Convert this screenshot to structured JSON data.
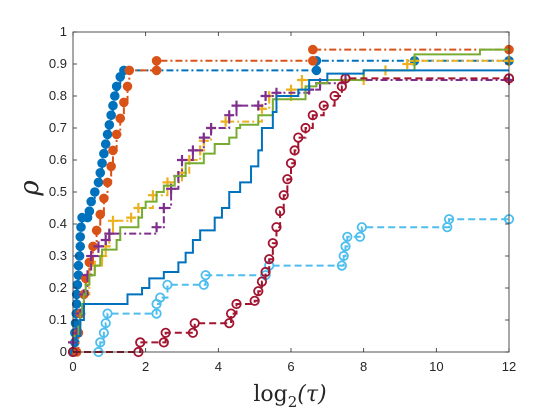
{
  "chart_data": {
    "type": "line",
    "subtype": "performance-profile-stairs",
    "title": "",
    "xlabel": "log",
    "xlabel_sub": "2",
    "xlabel_arg": "(τ)",
    "ylabel": "ρ",
    "xlim": [
      0,
      12
    ],
    "ylim": [
      0,
      1
    ],
    "x_ticks": [
      "0",
      "2",
      "4",
      "6",
      "8",
      "10",
      "12"
    ],
    "y_ticks": [
      "0",
      "0.1",
      "0.2",
      "0.3",
      "0.4",
      "0.5",
      "0.6",
      "0.7",
      "0.8",
      "0.9",
      "1"
    ],
    "grid": false,
    "legend": "none",
    "series": [
      {
        "color": "#0072BD",
        "line": "dashdot",
        "marker": "dot",
        "points": [
          [
            0,
            0
          ],
          [
            0.05,
            0.03
          ],
          [
            0.05,
            0.06
          ],
          [
            0.07,
            0.09
          ],
          [
            0.09,
            0.12
          ],
          [
            0.1,
            0.15
          ],
          [
            0.1,
            0.18
          ],
          [
            0.12,
            0.21
          ],
          [
            0.15,
            0.24
          ],
          [
            0.15,
            0.27
          ],
          [
            0.18,
            0.3
          ],
          [
            0.2,
            0.33
          ],
          [
            0.2,
            0.36
          ],
          [
            0.22,
            0.39
          ],
          [
            0.25,
            0.42
          ],
          [
            0.4,
            0.42
          ],
          [
            0.45,
            0.44
          ],
          [
            0.5,
            0.47
          ],
          [
            0.6,
            0.5
          ],
          [
            0.7,
            0.53
          ],
          [
            0.75,
            0.56
          ],
          [
            0.8,
            0.59
          ],
          [
            0.85,
            0.62
          ],
          [
            0.9,
            0.65
          ],
          [
            0.95,
            0.68
          ],
          [
            1.0,
            0.71
          ],
          [
            1.05,
            0.74
          ],
          [
            1.1,
            0.77
          ],
          [
            1.15,
            0.8
          ],
          [
            1.2,
            0.83
          ],
          [
            1.3,
            0.86
          ],
          [
            1.4,
            0.88
          ],
          [
            6.7,
            0.88
          ],
          [
            6.7,
            0.91
          ],
          [
            9.4,
            0.91
          ],
          [
            12,
            0.91
          ]
        ]
      },
      {
        "color": "#D95319",
        "line": "dashdot",
        "marker": "dot",
        "points": [
          [
            0.1,
            0.0
          ],
          [
            0.15,
            0.06
          ],
          [
            0.2,
            0.12
          ],
          [
            0.3,
            0.18
          ],
          [
            0.35,
            0.23
          ],
          [
            0.45,
            0.28
          ],
          [
            0.55,
            0.33
          ],
          [
            0.65,
            0.38
          ],
          [
            0.75,
            0.43
          ],
          [
            0.85,
            0.48
          ],
          [
            0.95,
            0.53
          ],
          [
            1.05,
            0.58
          ],
          [
            1.1,
            0.63
          ],
          [
            1.2,
            0.68
          ],
          [
            1.3,
            0.73
          ],
          [
            1.4,
            0.78
          ],
          [
            1.5,
            0.83
          ],
          [
            1.55,
            0.88
          ],
          [
            2.3,
            0.88
          ],
          [
            2.3,
            0.91
          ],
          [
            6.6,
            0.91
          ],
          [
            6.6,
            0.945
          ],
          [
            12,
            0.945
          ]
        ]
      },
      {
        "color": "#EDB120",
        "line": "dashdot",
        "marker": "plus",
        "points": [
          [
            0,
            0.03
          ],
          [
            0.1,
            0.06
          ],
          [
            0.2,
            0.12
          ],
          [
            0.3,
            0.18
          ],
          [
            0.45,
            0.24
          ],
          [
            0.6,
            0.27
          ],
          [
            0.8,
            0.3
          ],
          [
            0.9,
            0.33
          ],
          [
            1.0,
            0.37
          ],
          [
            1.1,
            0.41
          ],
          [
            1.6,
            0.42
          ],
          [
            1.8,
            0.45
          ],
          [
            2.2,
            0.49
          ],
          [
            2.6,
            0.53
          ],
          [
            3.0,
            0.56
          ],
          [
            3.2,
            0.6
          ],
          [
            3.5,
            0.63
          ],
          [
            3.6,
            0.66
          ],
          [
            3.8,
            0.7
          ],
          [
            4.2,
            0.72
          ],
          [
            5.2,
            0.76
          ],
          [
            5.4,
            0.8
          ],
          [
            6.0,
            0.8
          ],
          [
            6.0,
            0.82
          ],
          [
            6.3,
            0.85
          ],
          [
            8.0,
            0.85
          ],
          [
            8.6,
            0.88
          ],
          [
            9.2,
            0.9
          ],
          [
            9.4,
            0.91
          ],
          [
            12,
            0.91
          ]
        ]
      },
      {
        "color": "#7E2F8E",
        "line": "dashdot",
        "marker": "plus",
        "points": [
          [
            0,
            0.03
          ],
          [
            0.1,
            0.06
          ],
          [
            0.2,
            0.12
          ],
          [
            0.3,
            0.18
          ],
          [
            0.4,
            0.24
          ],
          [
            0.5,
            0.3
          ],
          [
            0.7,
            0.33
          ],
          [
            0.9,
            0.35
          ],
          [
            1.0,
            0.37
          ],
          [
            2.3,
            0.39
          ],
          [
            2.5,
            0.45
          ],
          [
            2.7,
            0.51
          ],
          [
            2.9,
            0.55
          ],
          [
            3.0,
            0.6
          ],
          [
            3.3,
            0.63
          ],
          [
            3.6,
            0.67
          ],
          [
            3.8,
            0.7
          ],
          [
            4.3,
            0.74
          ],
          [
            4.5,
            0.77
          ],
          [
            5.1,
            0.77
          ],
          [
            5.3,
            0.8
          ],
          [
            5.6,
            0.81
          ],
          [
            6.5,
            0.82
          ],
          [
            6.8,
            0.84
          ],
          [
            7.5,
            0.85
          ],
          [
            12,
            0.85
          ]
        ]
      },
      {
        "color": "#77AC30",
        "line": "solid",
        "marker": "none",
        "points": [
          [
            0,
            0.05
          ],
          [
            0.15,
            0.08
          ],
          [
            0.2,
            0.12
          ],
          [
            0.25,
            0.15
          ],
          [
            0.3,
            0.18
          ],
          [
            0.35,
            0.21
          ],
          [
            0.45,
            0.24
          ],
          [
            0.6,
            0.27
          ],
          [
            0.75,
            0.3
          ],
          [
            0.8,
            0.32
          ],
          [
            1.2,
            0.35
          ],
          [
            1.3,
            0.39
          ],
          [
            1.8,
            0.42
          ],
          [
            1.9,
            0.45
          ],
          [
            2.0,
            0.47
          ],
          [
            2.3,
            0.5
          ],
          [
            2.5,
            0.52
          ],
          [
            2.8,
            0.55
          ],
          [
            3.1,
            0.59
          ],
          [
            3.6,
            0.62
          ],
          [
            3.9,
            0.65
          ],
          [
            4.3,
            0.67
          ],
          [
            4.5,
            0.7
          ],
          [
            4.6,
            0.71
          ],
          [
            5.1,
            0.74
          ],
          [
            5.5,
            0.79
          ],
          [
            6.4,
            0.83
          ],
          [
            6.7,
            0.84
          ],
          [
            7.0,
            0.85
          ],
          [
            8.0,
            0.88
          ],
          [
            9.4,
            0.91
          ],
          [
            9.4,
            0.93
          ],
          [
            11.2,
            0.93
          ],
          [
            11.2,
            0.945
          ],
          [
            12,
            0.945
          ]
        ]
      },
      {
        "color": "#4DBEEE",
        "line": "dashed",
        "marker": "circle",
        "points": [
          [
            0,
            0
          ],
          [
            0.7,
            0.0
          ],
          [
            0.75,
            0.03
          ],
          [
            0.85,
            0.06
          ],
          [
            0.9,
            0.09
          ],
          [
            0.95,
            0.12
          ],
          [
            2.3,
            0.12
          ],
          [
            2.3,
            0.15
          ],
          [
            2.4,
            0.17
          ],
          [
            2.6,
            0.21
          ],
          [
            3.6,
            0.21
          ],
          [
            3.65,
            0.24
          ],
          [
            5.3,
            0.24
          ],
          [
            5.4,
            0.27
          ],
          [
            7.4,
            0.27
          ],
          [
            7.45,
            0.3
          ],
          [
            7.5,
            0.33
          ],
          [
            7.55,
            0.36
          ],
          [
            7.9,
            0.36
          ],
          [
            7.95,
            0.39
          ],
          [
            10.3,
            0.39
          ],
          [
            10.35,
            0.415
          ],
          [
            12,
            0.415
          ]
        ]
      },
      {
        "color": "#A2142F",
        "line": "dashed",
        "marker": "circle",
        "points": [
          [
            0,
            0
          ],
          [
            1.8,
            0.0
          ],
          [
            1.85,
            0.03
          ],
          [
            2.5,
            0.03
          ],
          [
            2.55,
            0.06
          ],
          [
            3.3,
            0.06
          ],
          [
            3.35,
            0.09
          ],
          [
            4.3,
            0.09
          ],
          [
            4.35,
            0.12
          ],
          [
            4.5,
            0.15
          ],
          [
            5.0,
            0.16
          ],
          [
            5.1,
            0.19
          ],
          [
            5.2,
            0.22
          ],
          [
            5.3,
            0.25
          ],
          [
            5.4,
            0.29
          ],
          [
            5.5,
            0.34
          ],
          [
            5.6,
            0.39
          ],
          [
            5.7,
            0.44
          ],
          [
            5.8,
            0.49
          ],
          [
            5.9,
            0.54
          ],
          [
            6.0,
            0.59
          ],
          [
            6.1,
            0.63
          ],
          [
            6.2,
            0.67
          ],
          [
            6.4,
            0.7
          ],
          [
            6.6,
            0.74
          ],
          [
            6.9,
            0.77
          ],
          [
            7.2,
            0.8
          ],
          [
            7.4,
            0.83
          ],
          [
            7.5,
            0.855
          ],
          [
            12,
            0.855
          ]
        ]
      },
      {
        "color": "#0072BD",
        "line": "solid",
        "marker": "none",
        "points": [
          [
            0,
            0.02
          ],
          [
            0.1,
            0.05
          ],
          [
            0.2,
            0.1
          ],
          [
            0.3,
            0.15
          ],
          [
            1.5,
            0.18
          ],
          [
            1.9,
            0.2
          ],
          [
            2.1,
            0.23
          ],
          [
            2.5,
            0.25
          ],
          [
            2.9,
            0.28
          ],
          [
            3.1,
            0.31
          ],
          [
            3.3,
            0.35
          ],
          [
            3.5,
            0.38
          ],
          [
            3.9,
            0.42
          ],
          [
            4.1,
            0.45
          ],
          [
            4.3,
            0.5
          ],
          [
            4.6,
            0.53
          ],
          [
            4.9,
            0.58
          ],
          [
            5.1,
            0.63
          ],
          [
            5.2,
            0.7
          ],
          [
            5.5,
            0.75
          ],
          [
            5.6,
            0.8
          ],
          [
            6.2,
            0.82
          ],
          [
            6.5,
            0.85
          ],
          [
            7.0,
            0.87
          ],
          [
            8.0,
            0.88
          ],
          [
            12,
            0.88
          ]
        ]
      }
    ]
  }
}
